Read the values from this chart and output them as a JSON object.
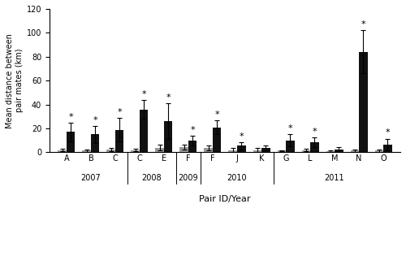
{
  "pairs": [
    "A",
    "B",
    "C",
    "C",
    "E",
    "F",
    "F",
    "J",
    "K",
    "G",
    "L",
    "M",
    "N",
    "O"
  ],
  "inside_mean": [
    2.0,
    1.5,
    2.5,
    2.0,
    4.0,
    4.5,
    3.5,
    2.0,
    2.0,
    1.5,
    2.0,
    1.0,
    1.5,
    1.5
  ],
  "inside_sd": [
    1.0,
    1.0,
    1.5,
    1.0,
    2.5,
    2.0,
    2.0,
    1.5,
    1.5,
    0.5,
    1.0,
    0.5,
    1.0,
    1.0
  ],
  "outside_mean": [
    17.0,
    15.0,
    19.0,
    36.0,
    26.0,
    10.0,
    21.0,
    5.5,
    3.5,
    10.0,
    8.5,
    2.5,
    84.0,
    6.5
  ],
  "outside_sd": [
    8.0,
    7.0,
    10.0,
    8.0,
    15.0,
    4.0,
    6.0,
    3.0,
    2.0,
    5.0,
    4.0,
    2.0,
    18.0,
    5.0
  ],
  "significant": [
    true,
    true,
    true,
    true,
    true,
    true,
    true,
    true,
    false,
    true,
    true,
    false,
    true,
    true
  ],
  "bar_width": 0.35,
  "inside_color": "#999999",
  "outside_color": "#111111",
  "ylim": [
    0,
    120
  ],
  "yticks": [
    0,
    20,
    40,
    60,
    80,
    100,
    120
  ],
  "ylabel": "Mean distance between\npair mates (km)",
  "xlabel": "Pair ID/Year",
  "year_groups": [
    {
      "label": "2007",
      "indices": [
        0,
        1,
        2
      ]
    },
    {
      "label": "2008",
      "indices": [
        3,
        4
      ]
    },
    {
      "label": "2009",
      "indices": [
        5
      ]
    },
    {
      "label": "2010",
      "indices": [
        6,
        7,
        8
      ]
    },
    {
      "label": "2011",
      "indices": [
        9,
        10,
        11,
        12,
        13
      ]
    }
  ],
  "dividers": [
    2.5,
    4.5,
    5.5,
    8.5
  ]
}
